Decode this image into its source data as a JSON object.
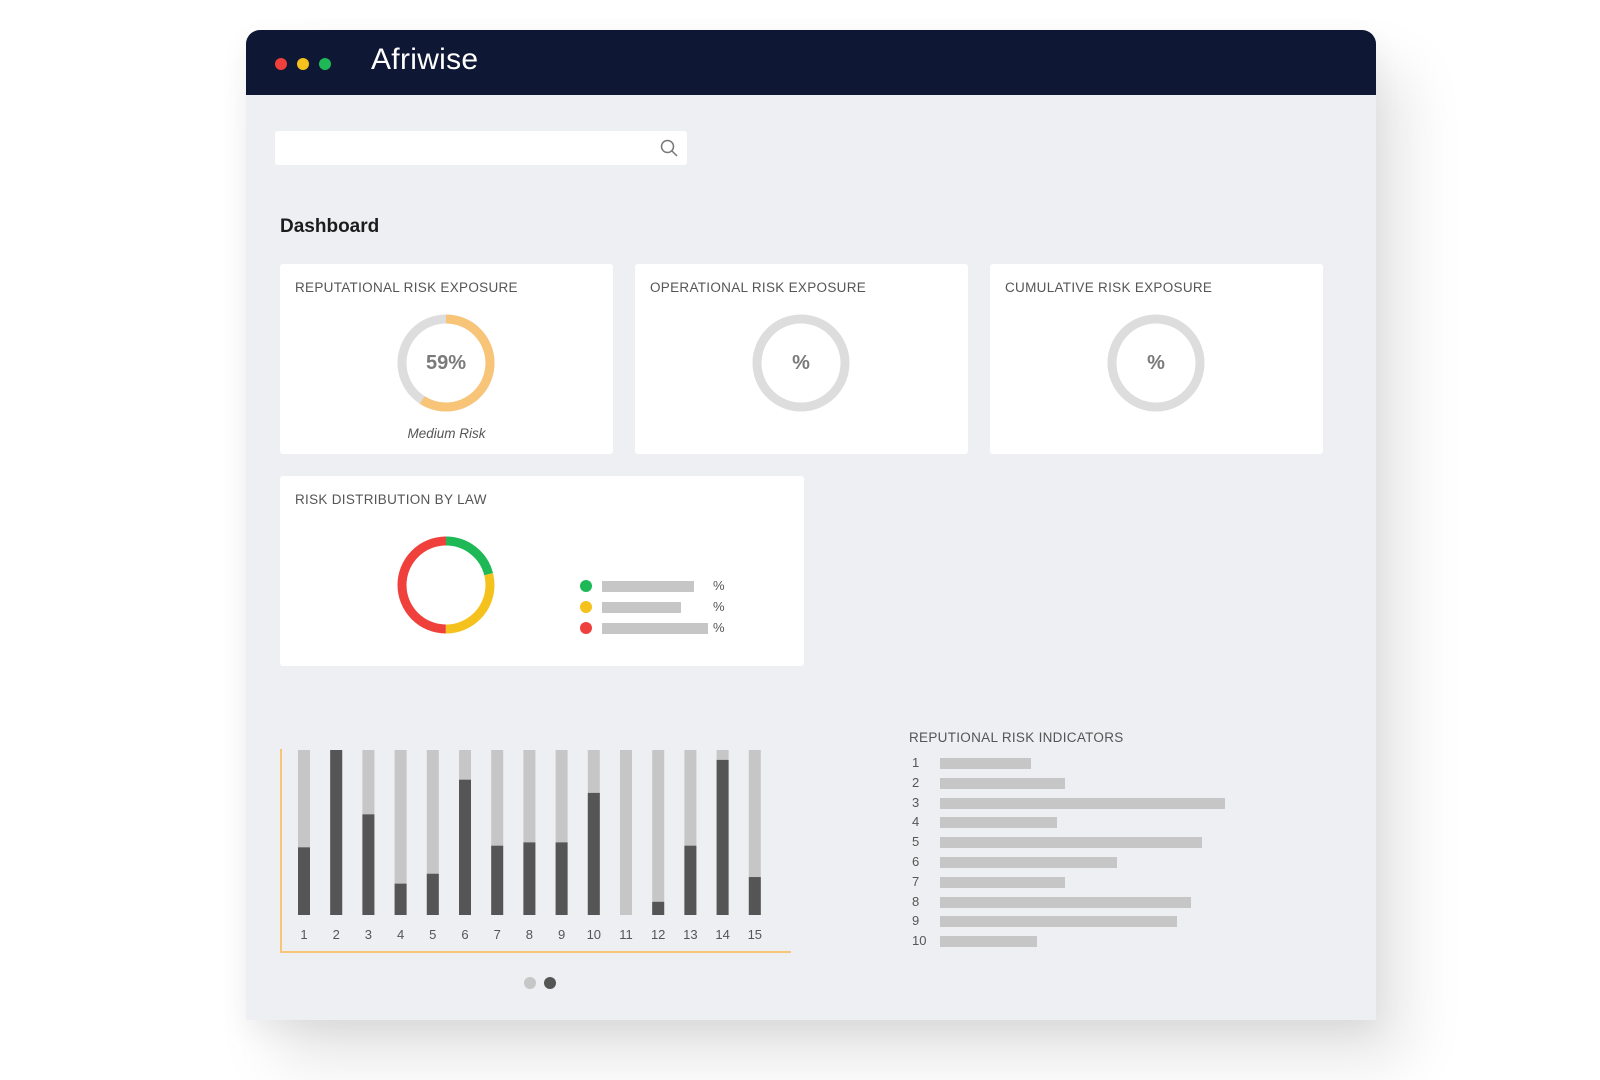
{
  "window": {
    "app_name": "Afriwise",
    "traffic_lights": {
      "close": "#f0403c",
      "minimize": "#f5c21d",
      "maximize": "#1eb857"
    }
  },
  "search": {
    "placeholder": "",
    "icon": "search-icon"
  },
  "dashboard": {
    "title": "Dashboard",
    "cards": [
      {
        "title": "REPUTATIONAL RISK EXPOSURE",
        "value_label": "59%",
        "value": 59,
        "caption": "Medium Risk",
        "color": "#f7c478"
      },
      {
        "title": "OPERATIONAL RISK EXPOSURE",
        "value_label": "%",
        "value": null,
        "caption": "",
        "color": "#dddddd"
      },
      {
        "title": "CUMULATIVE RISK EXPOSURE",
        "value_label": "%",
        "value": null,
        "caption": "",
        "color": "#dddddd"
      }
    ],
    "risk_distribution": {
      "title": "RISK DISTRIBUTION BY LAW",
      "segments": [
        {
          "color": "#1eb857",
          "fraction": 0.21
        },
        {
          "color": "#f5c21d",
          "fraction": 0.29
        },
        {
          "color": "#f0403c",
          "fraction": 0.5
        }
      ],
      "legend": [
        {
          "color": "#1eb857",
          "pct": "%"
        },
        {
          "color": "#f5c21d",
          "pct": "%"
        },
        {
          "color": "#f0403c",
          "pct": "%"
        }
      ]
    }
  },
  "chart_data": {
    "type": "bar",
    "categories": [
      "1",
      "2",
      "3",
      "4",
      "5",
      "6",
      "7",
      "8",
      "9",
      "10",
      "11",
      "12",
      "13",
      "14",
      "15"
    ],
    "series": [
      {
        "values": [
          41,
          100,
          61,
          19,
          25,
          82,
          42,
          44,
          44,
          74,
          0,
          8,
          42,
          94,
          23
        ]
      }
    ],
    "track_color": "#c6c6c6",
    "bar_color": "#555555",
    "axis_color": "#f7c478"
  },
  "pager": {
    "pages": 2,
    "active": 2
  },
  "indicators": {
    "title": "REPUTIONAL RISK INDICATORS",
    "items": [
      {
        "label": "1",
        "value": 32
      },
      {
        "label": "2",
        "value": 44
      },
      {
        "label": "3",
        "value": 100
      },
      {
        "label": "4",
        "value": 41
      },
      {
        "label": "5",
        "value": 92
      },
      {
        "label": "6",
        "value": 62
      },
      {
        "label": "7",
        "value": 44
      },
      {
        "label": "8",
        "value": 88
      },
      {
        "label": "9",
        "value": 83
      },
      {
        "label": "10",
        "value": 34
      }
    ]
  }
}
